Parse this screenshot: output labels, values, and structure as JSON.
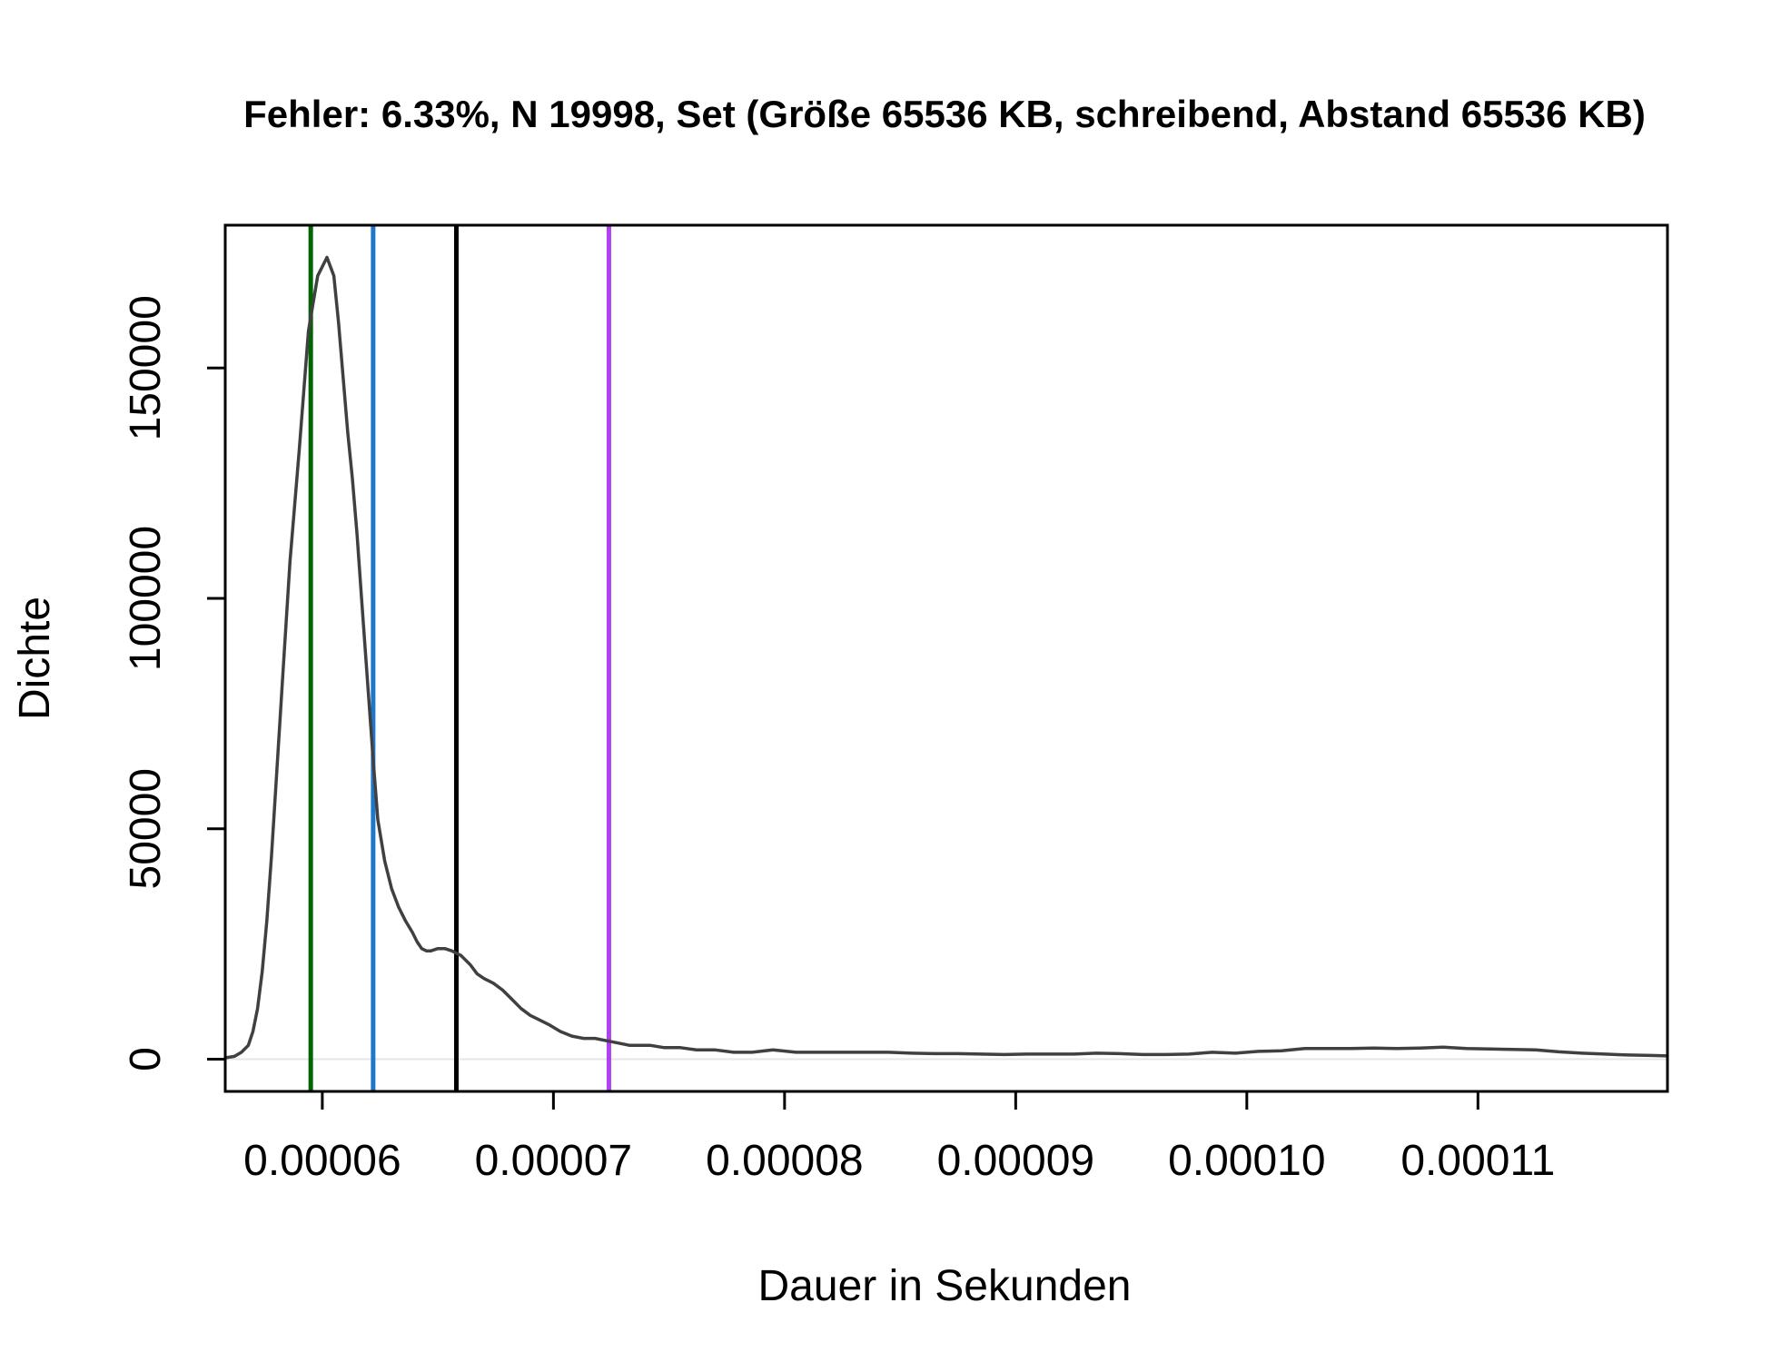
{
  "chart_data": {
    "type": "line",
    "title": "Fehler: 6.33%, N 19998, Set (Größe 65536 KB, schreibend, Abstand 65536 KB)",
    "xlabel": "Dauer in Sekunden",
    "ylabel": "Dichte",
    "xlim": [
      5.58e-05,
      0.0001182
    ],
    "ylim": [
      -7000,
      181000
    ],
    "x_ticks": [
      6e-05,
      7e-05,
      8e-05,
      9e-05,
      0.0001,
      0.00011
    ],
    "x_tick_labels": [
      "0.00006",
      "0.00007",
      "0.00008",
      "0.00009",
      "0.00010",
      "0.00011"
    ],
    "y_ticks": [
      0,
      50000,
      100000,
      150000
    ],
    "y_tick_labels": [
      "0",
      "50000",
      "100000",
      "150000"
    ],
    "grid": false,
    "legend": "none",
    "series": [
      {
        "color": "#404040",
        "x": [
          5.58e-05,
          5.62e-05,
          5.65e-05,
          5.68e-05,
          5.7e-05,
          5.72e-05,
          5.74e-05,
          5.76e-05,
          5.78e-05,
          5.8e-05,
          5.83e-05,
          5.86e-05,
          5.9e-05,
          5.94e-05,
          5.98e-05,
          6.02e-05,
          6.05e-05,
          6.07e-05,
          6.09e-05,
          6.11e-05,
          6.13e-05,
          6.15e-05,
          6.17e-05,
          6.19e-05,
          6.22e-05,
          6.24e-05,
          6.27e-05,
          6.3e-05,
          6.33e-05,
          6.36e-05,
          6.39e-05,
          6.41e-05,
          6.43e-05,
          6.45e-05,
          6.47e-05,
          6.5e-05,
          6.53e-05,
          6.56e-05,
          6.6e-05,
          6.64e-05,
          6.67e-05,
          6.7e-05,
          6.74e-05,
          6.78e-05,
          6.82e-05,
          6.86e-05,
          6.9e-05,
          6.94e-05,
          6.98e-05,
          7.03e-05,
          7.08e-05,
          7.13e-05,
          7.18e-05,
          7.23e-05,
          7.28e-05,
          7.33e-05,
          7.38e-05,
          7.42e-05,
          7.48e-05,
          7.55e-05,
          7.62e-05,
          7.7e-05,
          7.78e-05,
          7.86e-05,
          7.95e-05,
          8.05e-05,
          8.15e-05,
          8.25e-05,
          8.35e-05,
          8.45e-05,
          8.55e-05,
          8.65e-05,
          8.75e-05,
          8.85e-05,
          8.95e-05,
          9.05e-05,
          9.15e-05,
          9.25e-05,
          9.35e-05,
          9.45e-05,
          9.55e-05,
          9.65e-05,
          9.75e-05,
          9.85e-05,
          9.95e-05,
          0.0001005,
          0.0001015,
          0.0001025,
          0.0001035,
          0.0001045,
          0.0001055,
          0.0001065,
          0.0001075,
          0.0001085,
          0.0001095,
          0.0001105,
          0.0001115,
          0.0001125,
          0.0001135,
          0.0001145,
          0.0001155,
          0.0001165,
          0.0001175,
          0.0001182
        ],
        "y": [
          300,
          600,
          1500,
          3000,
          6000,
          11000,
          19000,
          30000,
          44000,
          60000,
          84000,
          108000,
          132000,
          158000,
          170000,
          174000,
          170000,
          160000,
          148000,
          136000,
          126000,
          114000,
          100000,
          86000,
          65000,
          52000,
          43000,
          37000,
          33000,
          30000,
          27500,
          25500,
          24000,
          23500,
          23500,
          24000,
          24000,
          23500,
          22500,
          20500,
          18500,
          17500,
          16500,
          15000,
          13000,
          11000,
          9500,
          8500,
          7500,
          6000,
          5000,
          4500,
          4500,
          4000,
          3500,
          3000,
          3000,
          3000,
          2500,
          2500,
          2000,
          2000,
          1500,
          1500,
          2000,
          1500,
          1500,
          1500,
          1500,
          1500,
          1300,
          1200,
          1200,
          1100,
          1000,
          1100,
          1100,
          1100,
          1300,
          1200,
          1000,
          1000,
          1100,
          1500,
          1300,
          1700,
          1800,
          2300,
          2300,
          2300,
          2400,
          2300,
          2400,
          2600,
          2300,
          2200,
          2100,
          2000,
          1600,
          1300,
          1100,
          900,
          800,
          700
        ]
      }
    ],
    "vertical_lines": [
      {
        "x": 5.95e-05,
        "color": "#006400"
      },
      {
        "x": 6.22e-05,
        "color": "#1f77cc"
      },
      {
        "x": 6.58e-05,
        "color": "#000000"
      },
      {
        "x": 7.24e-05,
        "color": "#b040f0"
      }
    ]
  }
}
